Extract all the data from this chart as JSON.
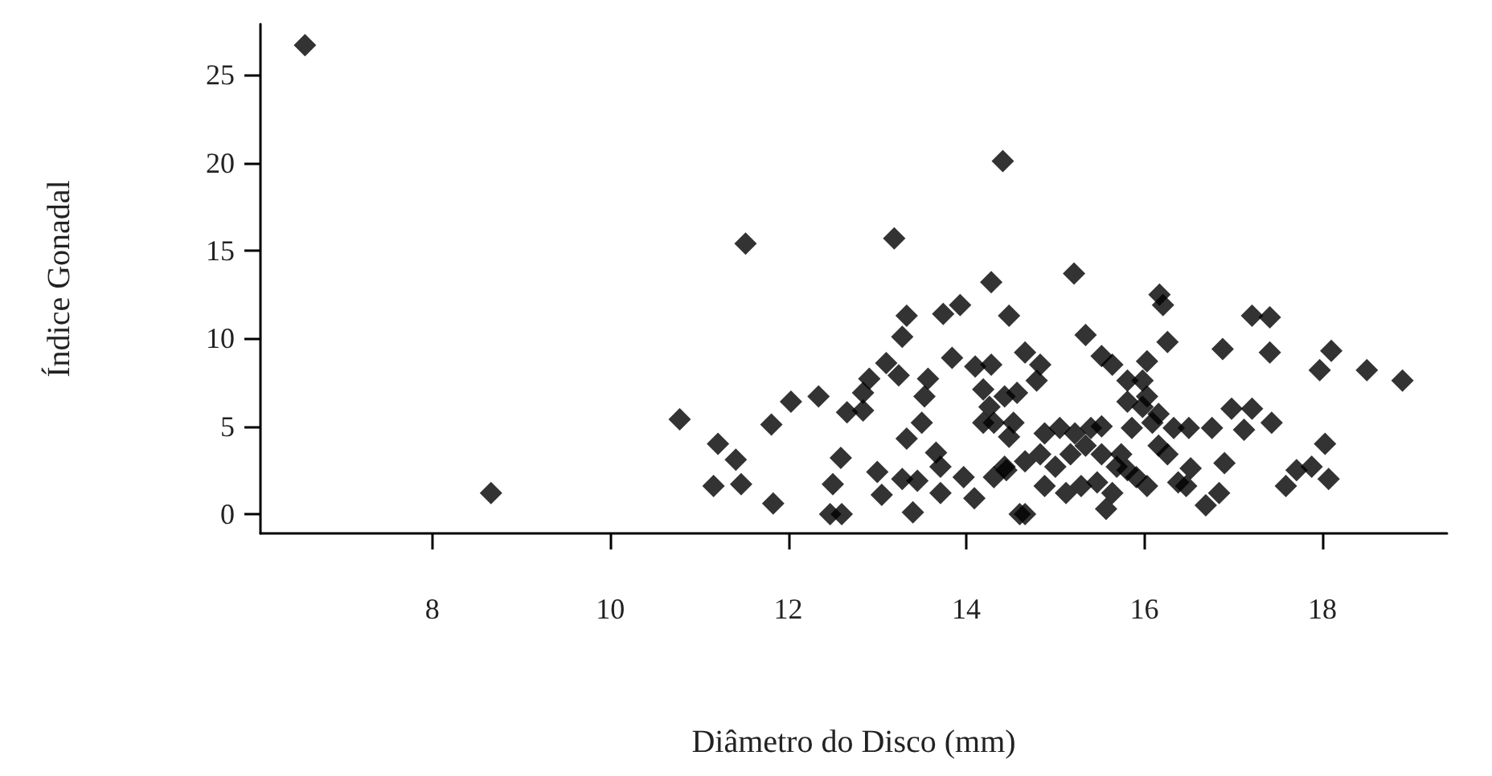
{
  "chart_data": {
    "type": "scatter",
    "xlabel": "Diâmetro do Disco (mm)",
    "ylabel": "Índice Gonadal",
    "marker": "diamond",
    "color": "#000000",
    "x": [
      6.57,
      8.66,
      10.78,
      11.21,
      11.41,
      11.16,
      11.47,
      11.52,
      11.81,
      11.83,
      12.03,
      12.34,
      12.59,
      12.5,
      12.47,
      12.6,
      12.66,
      12.84,
      12.84,
      12.91,
      13.1,
      13.24,
      13.19,
      13.28,
      13.33,
      13.0,
      13.05,
      13.28,
      13.45,
      13.4,
      13.33,
      13.5,
      13.53,
      13.57,
      13.66,
      13.71,
      13.74,
      13.93,
      13.84,
      13.71,
      13.97,
      14.09,
      14.1,
      14.28,
      14.19,
      14.26,
      14.19,
      14.28,
      14.48,
      14.41,
      14.43,
      14.48,
      14.31,
      14.6,
      15.21,
      15.34,
      14.66,
      14.83,
      14.79,
      15.52,
      15.64,
      16.03,
      15.81,
      16.17,
      16.21,
      16.26,
      15.98,
      15.81,
      16.03,
      16.16,
      16.33,
      16.5,
      16.76,
      16.88,
      17.21,
      17.41,
      17.41,
      16.98,
      17.21,
      17.12,
      17.43,
      18.1,
      17.97,
      18.5,
      18.9,
      18.03,
      16.9,
      16.52,
      16.47,
      16.84,
      16.69,
      17.59,
      17.71,
      17.88,
      18.07,
      14.66,
      14.43,
      14.57,
      14.31,
      14.53,
      14.45,
      14.66,
      14.88,
      15.05,
      15.22,
      15.4,
      15.52,
      14.83,
      15.0,
      15.17,
      15.34,
      15.52,
      15.69,
      14.88,
      15.12,
      15.29,
      15.47,
      15.64,
      15.57,
      15.81,
      15.91,
      16.03,
      16.16,
      16.26,
      15.86,
      15.98,
      16.09,
      16.38,
      15.74
    ],
    "values": [
      26.7,
      1.2,
      5.4,
      4.0,
      3.1,
      1.6,
      1.7,
      15.4,
      5.1,
      0.6,
      6.4,
      6.7,
      3.2,
      1.7,
      0.0,
      0.0,
      5.8,
      5.9,
      6.9,
      7.7,
      8.6,
      7.9,
      15.7,
      10.1,
      11.3,
      2.4,
      1.1,
      2.0,
      1.9,
      0.1,
      4.3,
      5.2,
      6.7,
      7.7,
      3.5,
      2.7,
      11.4,
      11.9,
      8.9,
      1.2,
      2.1,
      0.9,
      8.4,
      8.5,
      7.1,
      6.1,
      5.2,
      13.2,
      11.3,
      20.1,
      2.7,
      4.4,
      2.1,
      0.0,
      13.7,
      10.2,
      9.2,
      8.5,
      7.6,
      9.0,
      8.5,
      8.7,
      7.6,
      12.5,
      11.9,
      9.8,
      7.6,
      6.4,
      6.7,
      5.7,
      4.9,
      4.9,
      4.9,
      9.4,
      11.3,
      11.2,
      9.2,
      6.0,
      6.0,
      4.8,
      5.2,
      9.3,
      8.2,
      8.2,
      7.6,
      4.0,
      2.9,
      2.6,
      1.6,
      1.2,
      0.5,
      1.6,
      2.5,
      2.7,
      2.0,
      0.0,
      6.7,
      6.9,
      5.2,
      5.2,
      2.5,
      3.0,
      4.6,
      4.9,
      4.6,
      4.9,
      5.0,
      3.4,
      2.7,
      3.4,
      3.9,
      3.4,
      2.7,
      1.6,
      1.2,
      1.6,
      1.8,
      1.2,
      0.3,
      2.5,
      2.1,
      1.6,
      3.9,
      3.4,
      4.9,
      6.1,
      5.2,
      1.8,
      3.4
    ],
    "xlim": [
      6.07,
      19.4
    ],
    "ylim": [
      -1.1,
      27.9
    ],
    "xticks": [
      8,
      10,
      12,
      14,
      16,
      18
    ],
    "yticks": [
      0,
      5,
      10,
      15,
      20,
      25
    ]
  }
}
